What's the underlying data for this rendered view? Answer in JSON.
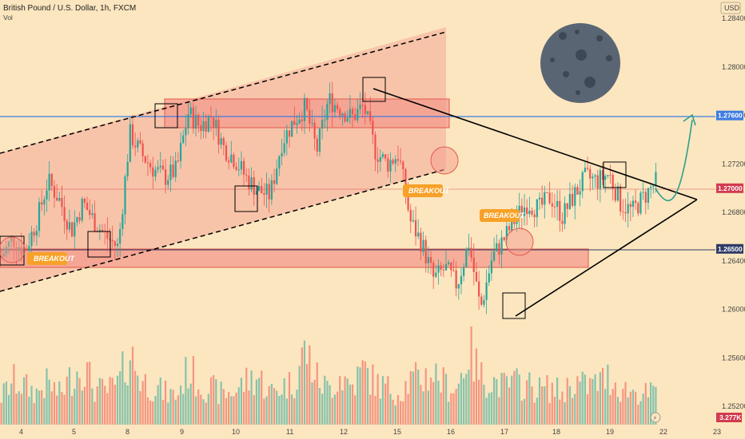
{
  "header": {
    "title": "British Pound / U.S. Dollar, 1h, FXCM",
    "volume_label": "Vol"
  },
  "currency_button": "USD",
  "colors": {
    "background": "#FCE6BF",
    "bull": "#26A69A",
    "bear": "#EF5350",
    "zone": "#F49B8D",
    "zone_border": "#E05A4E",
    "channel": "#000000",
    "blue_line": "#3E7CE0",
    "red_line": "#D23B4F",
    "callout": "#F7A128",
    "moon": "#5A6574",
    "projection": "#2E9E8E"
  },
  "chart_data": {
    "type": "candlestick",
    "symbol": "GBPUSD",
    "timeframe": "1h",
    "y_axis": {
      "min": 1.2505,
      "max": 1.285,
      "ticks": [
        "1.28400",
        "1.28000",
        "1.27600",
        "1.27200",
        "1.26800",
        "1.26400",
        "1.26000",
        "1.25600",
        "1.25200"
      ]
    },
    "x_ticks": [
      "4",
      "5",
      "8",
      "9",
      "10",
      "11",
      "12",
      "15",
      "16",
      "17",
      "18",
      "19",
      "22",
      "23"
    ],
    "price_tags": [
      {
        "value": "1.27600",
        "color": "#3E7CE0",
        "y": 1.276
      },
      {
        "value": "1.27000",
        "color": "#D23B4F",
        "y": 1.27
      },
      {
        "value": "1.26500",
        "color": "#2E3A66",
        "y": 1.265
      }
    ],
    "volume_tag": "3.277K",
    "horizontal_lines": [
      {
        "name": "resistance",
        "y": 1.276,
        "color": "#3E7CE0"
      },
      {
        "name": "last-price",
        "y": 1.27,
        "color": "#D23B4F"
      },
      {
        "name": "support",
        "y": 1.265,
        "color": "#2E3A66"
      }
    ],
    "close_path": [
      1.2644,
      1.2658,
      1.2648,
      1.2672,
      1.2706,
      1.269,
      1.2665,
      1.2688,
      1.2672,
      1.266,
      1.2651,
      1.2745,
      1.2728,
      1.2716,
      1.2709,
      1.2715,
      1.2762,
      1.2751,
      1.276,
      1.2734,
      1.2724,
      1.2708,
      1.2698,
      1.2694,
      1.2738,
      1.2755,
      1.2767,
      1.2731,
      1.2773,
      1.2766,
      1.2758,
      1.2768,
      1.2731,
      1.272,
      1.2728,
      1.2673,
      1.2654,
      1.2625,
      1.2634,
      1.262,
      1.2655,
      1.26,
      1.2643,
      1.2658,
      1.2675,
      1.2688,
      1.2683,
      1.2693,
      1.2677,
      1.2694,
      1.2709,
      1.2706,
      1.2712,
      1.2687,
      1.2681,
      1.2693,
      1.2705
    ],
    "volume_profile": [
      35,
      55,
      48,
      40,
      52,
      38,
      60,
      75,
      45,
      42,
      50,
      90,
      55,
      48,
      40,
      36,
      70,
      50,
      45,
      38,
      42,
      55,
      60,
      40,
      48,
      52,
      95,
      58,
      44,
      62,
      48,
      70,
      52,
      46,
      40,
      55,
      58,
      65,
      50,
      45,
      95,
      60,
      55,
      48,
      52,
      50,
      44,
      46,
      40,
      55,
      48,
      52,
      60,
      45,
      42,
      38,
      40
    ]
  },
  "annotations": {
    "breakout_1": "BREAKOUT",
    "breakout_2": "BREAKOUT",
    "breakout_3": "BREAKOUT"
  }
}
